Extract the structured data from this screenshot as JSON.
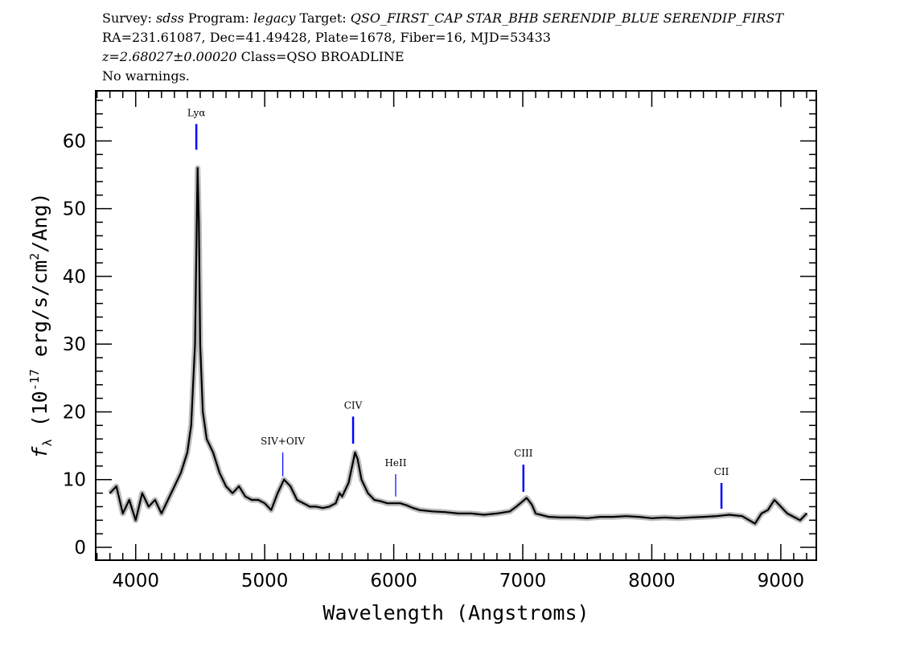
{
  "header": {
    "survey_label": "Survey:",
    "survey": "sdss",
    "program_label": "Program:",
    "program": "legacy",
    "target_label": "Target:",
    "target": "QSO_FIRST_CAP STAR_BHB SERENDIP_BLUE SERENDIP_FIRST",
    "line2": "RA=231.61087, Dec=41.49428, Plate=1678, Fiber=16, MJD=53433",
    "redshift": "z=2.68027±0.00020",
    "class": "Class=QSO BROADLINE",
    "warnings": "No warnings."
  },
  "chart_data": {
    "type": "line",
    "xlabel": "Wavelength (Angstroms)",
    "ylabel": "f_λ (10^-17 erg/s/cm^2/Ang)",
    "ylabel_parts": {
      "f": "f",
      "sub": "λ",
      "pre": " (10",
      "exp1": "-17",
      "mid": " erg/s/cm",
      "exp2": "2",
      "post": "/Ang)"
    },
    "xlim": [
      3690,
      9275
    ],
    "ylim": [
      -1.9,
      67.4
    ],
    "xticks": [
      4000,
      5000,
      6000,
      7000,
      8000,
      9000
    ],
    "xtick_labels": [
      "4000",
      "5000",
      "6000",
      "7000",
      "8000",
      "9000"
    ],
    "yticks": [
      0,
      10,
      20,
      30,
      40,
      50,
      60
    ],
    "ytick_labels": [
      "0",
      "10",
      "20",
      "30",
      "40",
      "50",
      "60"
    ],
    "grid": false,
    "colors": {
      "flux": "#000000",
      "error_band": "#bbbbbb",
      "line_marker": "#0000ff"
    },
    "series": [
      {
        "name": "flux",
        "x": [
          3800,
          3850,
          3900,
          3950,
          4000,
          4050,
          4100,
          4150,
          4200,
          4250,
          4300,
          4350,
          4400,
          4430,
          4460,
          4475,
          4480,
          4490,
          4500,
          4520,
          4550,
          4600,
          4650,
          4700,
          4750,
          4800,
          4850,
          4900,
          4950,
          5000,
          5050,
          5100,
          5150,
          5200,
          5250,
          5300,
          5350,
          5400,
          5450,
          5500,
          5550,
          5580,
          5600,
          5650,
          5700,
          5720,
          5750,
          5800,
          5850,
          5900,
          5950,
          6000,
          6050,
          6100,
          6150,
          6200,
          6300,
          6400,
          6500,
          6600,
          6700,
          6800,
          6900,
          6950,
          7000,
          7030,
          7070,
          7100,
          7200,
          7300,
          7400,
          7500,
          7600,
          7700,
          7800,
          7900,
          8000,
          8100,
          8200,
          8300,
          8400,
          8500,
          8600,
          8700,
          8800,
          8850,
          8900,
          8950,
          9000,
          9050,
          9100,
          9150,
          9200
        ],
        "y": [
          8,
          9,
          5,
          7,
          4,
          8,
          6,
          7,
          5,
          7,
          9,
          11,
          14,
          18,
          30,
          50,
          56,
          48,
          30,
          20,
          16,
          14,
          11,
          9,
          8,
          9,
          7.5,
          7,
          7,
          6.5,
          5.5,
          8,
          10,
          9,
          7,
          6.5,
          6,
          6,
          5.8,
          6,
          6.5,
          8,
          7.5,
          9.5,
          14,
          13,
          10,
          8,
          7,
          6.8,
          6.5,
          6.5,
          6.5,
          6.2,
          5.8,
          5.5,
          5.3,
          5.2,
          5,
          5,
          4.8,
          5,
          5.3,
          6,
          6.8,
          7.3,
          6.3,
          5,
          4.5,
          4.4,
          4.4,
          4.3,
          4.5,
          4.5,
          4.6,
          4.5,
          4.3,
          4.4,
          4.3,
          4.4,
          4.5,
          4.6,
          4.8,
          4.6,
          3.5,
          5,
          5.5,
          7,
          6,
          5,
          4.5,
          4,
          5
        ]
      }
    ],
    "line_markers": [
      {
        "label": "Lyα",
        "wavelength": 4470,
        "top": 62.5,
        "bottom": 58.7,
        "bold": true
      },
      {
        "label": "SIV+OIV",
        "wavelength": 5140,
        "top": 14,
        "bottom": 10.5,
        "bold": false
      },
      {
        "label": "CIV",
        "wavelength": 5685,
        "top": 19.3,
        "bottom": 15.3,
        "bold": true
      },
      {
        "label": "HeII",
        "wavelength": 6015,
        "top": 10.8,
        "bottom": 7.5,
        "bold": false
      },
      {
        "label": "CIII",
        "wavelength": 7005,
        "top": 12.2,
        "bottom": 8.2,
        "bold": true
      },
      {
        "label": "CII",
        "wavelength": 8540,
        "top": 9.5,
        "bottom": 5.7,
        "bold": true
      }
    ]
  }
}
